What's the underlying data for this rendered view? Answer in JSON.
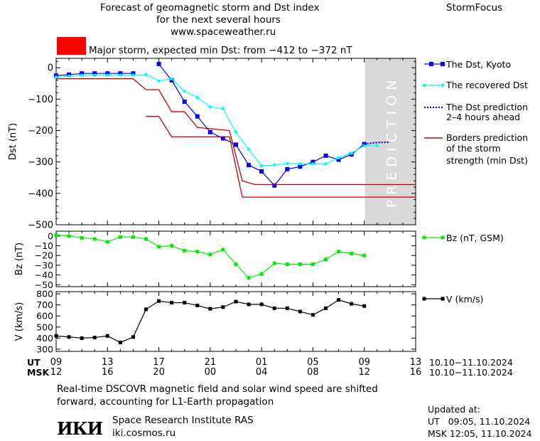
{
  "header": {
    "title_line1": "Forecast of geomagnetic storm and Dst index",
    "title_line2": "for the next several hours",
    "title_line3": "www.spaceweather.ru",
    "brand": "StormFocus",
    "storm_label": "Major storm, expected min Dst: from −412 to −372 nT",
    "storm_color": "#ff0000"
  },
  "colors": {
    "dst_kyoto": "#0000ff",
    "dst_recovered": "#00ffff",
    "borders": "#cc0000",
    "bz": "#00ee00",
    "v": "#000000",
    "prediction_band": "#d9d9d9"
  },
  "chart_data": [
    {
      "type": "line",
      "ylabel": "Dst (nT)",
      "ylim": [
        -500,
        30
      ],
      "yticks": [
        0,
        -100,
        -200,
        -300,
        -400,
        -500
      ],
      "ytick_labels": [
        "0",
        "−100",
        "−200",
        "−300",
        "−400",
        "−500"
      ],
      "x_unit": "hours from 09 UT 10.10.2024",
      "xlim": [
        0,
        28
      ],
      "prediction_band": {
        "x_start": 24.2,
        "x_end": 28,
        "label": "PREDICTION"
      },
      "legend": [
        {
          "name": "The Dst, Kyoto",
          "style": "blue-square-line"
        },
        {
          "name": "The recovered Dst",
          "style": "cyan-square-line"
        },
        {
          "name": "The Dst prediction 2–4 hours ahead",
          "line1": "The Dst prediction",
          "line2": "2–4 hours ahead",
          "style": "blue-dotted"
        },
        {
          "name": "Borders prediction of the storm strength (min Dst)",
          "line1": "Borders prediction",
          "line2": "of the storm",
          "line3": "strength (min Dst)",
          "style": "red-line"
        }
      ],
      "series": [
        {
          "name": "The Dst, Kyoto",
          "x": [
            0,
            1,
            2,
            3,
            4,
            5,
            6,
            7,
            8,
            9,
            10,
            11,
            12,
            13,
            14,
            15,
            16,
            17,
            18,
            19,
            20,
            21,
            22,
            23,
            24
          ],
          "y": [
            -25,
            -22,
            -18,
            -18,
            -18,
            -18,
            -18,
            null,
            12,
            -40,
            -108,
            -155,
            -205,
            -225,
            -245,
            -310,
            -330,
            -375,
            -323,
            -315,
            -300,
            -280,
            -293,
            -276,
            -243
          ]
        },
        {
          "name": "The recovered Dst",
          "x": [
            0,
            1,
            2,
            3,
            4,
            5,
            6,
            7,
            8,
            9,
            10,
            11,
            12,
            13,
            14,
            15,
            16,
            17,
            18,
            19,
            20,
            21,
            22,
            23,
            24,
            25
          ],
          "y": [
            -30,
            -27,
            -24,
            -24,
            -24,
            -24,
            -24,
            -22,
            -42,
            -35,
            -75,
            -95,
            -125,
            -130,
            -205,
            -260,
            -312,
            -310,
            -305,
            -306,
            -306,
            -306,
            -287,
            -272,
            -248,
            -248
          ]
        },
        {
          "name": "The Dst prediction 2–4 hours ahead",
          "x": [
            24,
            25,
            26
          ],
          "y": [
            -243,
            -238,
            -237
          ]
        },
        {
          "name": "Border upper",
          "segments": [
            [
              [
                0,
                -35
              ],
              [
                6,
                -35
              ],
              [
                7,
                -70
              ],
              [
                8,
                -70
              ],
              [
                9,
                -140
              ],
              [
                10,
                -140
              ],
              [
                11,
                -190
              ],
              [
                13.5,
                -200
              ],
              [
                14.5,
                -360
              ],
              [
                15.5,
                -372
              ],
              [
                28,
                -372
              ]
            ]
          ]
        },
        {
          "name": "Border lower",
          "segments": [
            [
              [
                7,
                -155
              ],
              [
                8,
                -155
              ],
              [
                9,
                -220
              ],
              [
                12.5,
                -220
              ],
              [
                13.5,
                -220
              ],
              [
                14.5,
                -412
              ],
              [
                28,
                -412
              ]
            ]
          ]
        }
      ]
    },
    {
      "type": "line",
      "ylabel": "Bz (nT)",
      "ylim": [
        -52,
        5
      ],
      "yticks": [
        0,
        -10,
        -20,
        -30,
        -40,
        -50
      ],
      "ytick_labels": [
        "0",
        "−10",
        "−20",
        "−30",
        "−40",
        "−50"
      ],
      "legend": [
        {
          "name": "Bz (nT, GSM)"
        }
      ],
      "series": [
        {
          "name": "Bz (nT, GSM)",
          "x": [
            0,
            1,
            2,
            3,
            4,
            5,
            6,
            7,
            8,
            9,
            10,
            11,
            12,
            13,
            14,
            15,
            16,
            17,
            18,
            19,
            20,
            21,
            22,
            23,
            24,
            25
          ],
          "y": [
            1,
            0,
            -2,
            -3,
            -6,
            -1,
            -1,
            -3,
            -11,
            -10,
            -15,
            -16,
            -19,
            -14,
            -29,
            -43,
            -39,
            -28,
            -29,
            -29,
            -29,
            -24,
            -16,
            -18,
            -20,
            null
          ]
        }
      ]
    },
    {
      "type": "line",
      "ylabel": "V (km/s)",
      "ylim": [
        280,
        820
      ],
      "yticks": [
        300,
        400,
        500,
        600,
        700,
        800
      ],
      "ytick_labels": [
        "300",
        "400",
        "500",
        "600",
        "700",
        "800"
      ],
      "legend": [
        {
          "name": "V (km/s)"
        }
      ],
      "series": [
        {
          "name": "V (km/s)",
          "x": [
            0,
            1,
            2,
            3,
            4,
            5,
            6,
            7,
            8,
            9,
            10,
            11,
            12,
            13,
            14,
            15,
            16,
            17,
            18,
            19,
            20,
            21,
            22,
            23,
            24,
            25
          ],
          "y": [
            420,
            410,
            400,
            405,
            420,
            360,
            410,
            660,
            735,
            720,
            720,
            695,
            665,
            680,
            730,
            705,
            705,
            670,
            670,
            640,
            610,
            670,
            745,
            710,
            690,
            null
          ]
        }
      ]
    }
  ],
  "x_axis": {
    "ticks": [
      0,
      4,
      8,
      12,
      16,
      20,
      24,
      28
    ],
    "ut_labels": [
      "09",
      "13",
      "17",
      "21",
      "01",
      "05",
      "09",
      "13"
    ],
    "msk_labels": [
      "12",
      "16",
      "20",
      "00",
      "04",
      "08",
      "12",
      "16"
    ],
    "ut_title": "UT",
    "msk_title": "MSK",
    "ut_range": "10.10−11.10.2024",
    "msk_range": "10.10−11.10.2024"
  },
  "footer": {
    "note_line1": "Real-time DSCOVR magnetic field and solar wind speed are shifted",
    "note_line2": "forward, accounting for L1-Earth propagation",
    "logo_text": "ИКИ",
    "institute": "Space Research Institute RAS",
    "site": "iki.cosmos.ru",
    "updated_title": "Updated at:",
    "updated_ut": "UT   09:05, 11.10.2024",
    "updated_msk": "MSK 12:05, 11.10.2024"
  }
}
